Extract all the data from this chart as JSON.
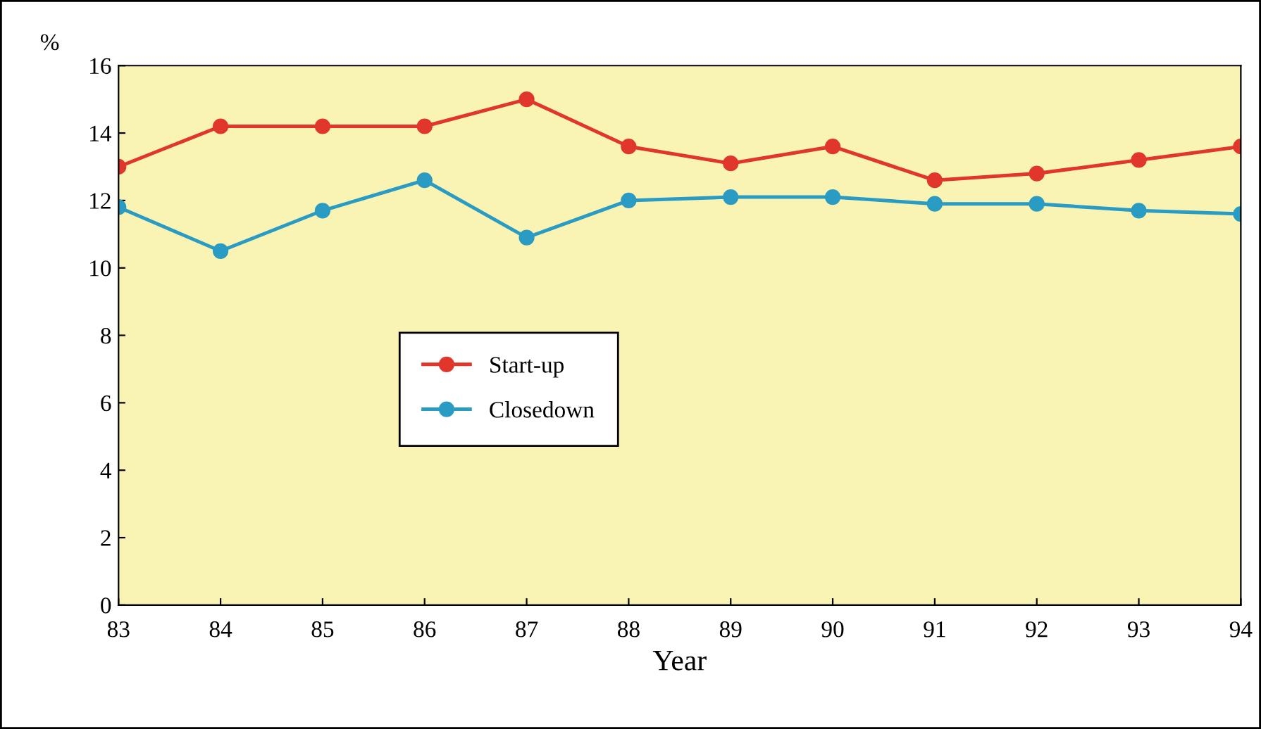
{
  "chart_data": {
    "type": "line",
    "xlabel": "Year",
    "ylabel": "%",
    "x": [
      83,
      84,
      85,
      86,
      87,
      88,
      89,
      90,
      91,
      92,
      93,
      94
    ],
    "xlim": [
      83,
      94
    ],
    "xticks": [
      83,
      84,
      85,
      86,
      87,
      88,
      89,
      90,
      91,
      92,
      93,
      94
    ],
    "ylim": [
      0,
      16
    ],
    "yticks": [
      0,
      2,
      4,
      6,
      8,
      10,
      12,
      14,
      16
    ],
    "series": [
      {
        "name": "Start-up",
        "color": "#e0362b",
        "values": [
          13.0,
          14.2,
          14.2,
          14.2,
          15.0,
          13.6,
          13.1,
          13.6,
          12.6,
          12.8,
          13.2,
          13.6
        ]
      },
      {
        "name": "Closedown",
        "color": "#2a9bc2",
        "values": [
          11.8,
          10.5,
          11.7,
          12.6,
          10.9,
          12.0,
          12.1,
          12.1,
          11.9,
          11.9,
          11.7,
          11.6
        ]
      }
    ],
    "marker": "circle",
    "line_style": "solid",
    "grid": false,
    "legend": "center left"
  }
}
